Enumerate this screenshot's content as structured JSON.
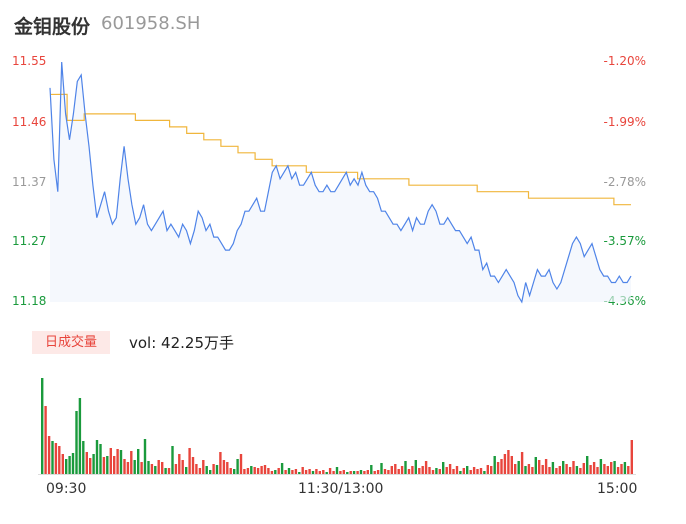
{
  "header": {
    "name": "金钼股份",
    "code": "601958.SH"
  },
  "colors": {
    "up": "#e8453c",
    "down": "#1a9a3c",
    "price_line": "#4f84e8",
    "avg_line": "#f0b63c"
  },
  "chart_data": {
    "type": "line",
    "price_axis": {
      "ticks": [
        "11.55",
        "11.46",
        "11.37",
        "11.27",
        "11.18"
      ],
      "ylim": [
        11.18,
        11.55
      ]
    },
    "pct_axis": {
      "ticks": [
        "-1.20%",
        "-1.99%",
        "-2.78%",
        "-3.57%",
        "-4.36%"
      ]
    },
    "x_ticks": [
      "09:30",
      "11:30/13:00",
      "15:00"
    ],
    "series": [
      {
        "name": "price",
        "y": [
          11.51,
          11.4,
          11.35,
          11.55,
          11.47,
          11.43,
          11.47,
          11.52,
          11.53,
          11.47,
          11.42,
          11.36,
          11.31,
          11.33,
          11.35,
          11.32,
          11.3,
          11.31,
          11.37,
          11.42,
          11.37,
          11.33,
          11.3,
          11.31,
          11.33,
          11.3,
          11.29,
          11.3,
          11.31,
          11.32,
          11.29,
          11.3,
          11.29,
          11.28,
          11.3,
          11.29,
          11.27,
          11.29,
          11.32,
          11.31,
          11.29,
          11.3,
          11.28,
          11.28,
          11.27,
          11.26,
          11.26,
          11.27,
          11.29,
          11.3,
          11.32,
          11.32,
          11.33,
          11.34,
          11.32,
          11.32,
          11.35,
          11.38,
          11.39,
          11.37,
          11.38,
          11.39,
          11.37,
          11.38,
          11.36,
          11.36,
          11.37,
          11.38,
          11.36,
          11.35,
          11.35,
          11.36,
          11.35,
          11.35,
          11.36,
          11.37,
          11.38,
          11.36,
          11.37,
          11.36,
          11.38,
          11.36,
          11.35,
          11.35,
          11.34,
          11.32,
          11.32,
          11.31,
          11.3,
          11.3,
          11.29,
          11.3,
          11.31,
          11.29,
          11.31,
          11.3,
          11.3,
          11.32,
          11.33,
          11.32,
          11.3,
          11.3,
          11.31,
          11.3,
          11.29,
          11.29,
          11.28,
          11.27,
          11.28,
          11.26,
          11.26,
          11.23,
          11.24,
          11.22,
          11.22,
          11.21,
          11.22,
          11.23,
          11.22,
          11.21,
          11.19,
          11.18,
          11.21,
          11.19,
          11.21,
          11.23,
          11.22,
          11.22,
          11.23,
          11.21,
          11.2,
          11.21,
          11.23,
          11.25,
          11.27,
          11.28,
          11.27,
          11.25,
          11.26,
          11.27,
          11.25,
          11.23,
          11.22,
          11.22,
          11.21,
          11.21,
          11.22,
          11.21,
          11.21,
          11.22
        ]
      },
      {
        "name": "average",
        "y": [
          11.5,
          11.46,
          11.47,
          11.47,
          11.47,
          11.46,
          11.46,
          11.45,
          11.44,
          11.43,
          11.42,
          11.41,
          11.4,
          11.39,
          11.39,
          11.38,
          11.38,
          11.38,
          11.37,
          11.37,
          11.37,
          11.36,
          11.36,
          11.36,
          11.36,
          11.35,
          11.35,
          11.35,
          11.34,
          11.34,
          11.34,
          11.34,
          11.34,
          11.33,
          11.33
        ]
      }
    ]
  },
  "volume": {
    "tag": "日成交量",
    "label": "vol: 42.25万手",
    "bars": [
      {
        "v": 96,
        "c": "down"
      },
      {
        "v": 68,
        "c": "up"
      },
      {
        "v": 38,
        "c": "up"
      },
      {
        "v": 33,
        "c": "down"
      },
      {
        "v": 31,
        "c": "up"
      },
      {
        "v": 28,
        "c": "up"
      },
      {
        "v": 20,
        "c": "up"
      },
      {
        "v": 15,
        "c": "down"
      },
      {
        "v": 18,
        "c": "down"
      },
      {
        "v": 21,
        "c": "down"
      },
      {
        "v": 63,
        "c": "down"
      },
      {
        "v": 76,
        "c": "down"
      },
      {
        "v": 33,
        "c": "down"
      },
      {
        "v": 22,
        "c": "up"
      },
      {
        "v": 16,
        "c": "up"
      },
      {
        "v": 20,
        "c": "down"
      },
      {
        "v": 34,
        "c": "down"
      },
      {
        "v": 30,
        "c": "down"
      },
      {
        "v": 17,
        "c": "up"
      },
      {
        "v": 18,
        "c": "down"
      },
      {
        "v": 26,
        "c": "up"
      },
      {
        "v": 18,
        "c": "up"
      },
      {
        "v": 25,
        "c": "up"
      },
      {
        "v": 24,
        "c": "down"
      },
      {
        "v": 15,
        "c": "up"
      },
      {
        "v": 12,
        "c": "up"
      },
      {
        "v": 23,
        "c": "up"
      },
      {
        "v": 14,
        "c": "down"
      },
      {
        "v": 25,
        "c": "down"
      },
      {
        "v": 12,
        "c": "up"
      },
      {
        "v": 35,
        "c": "down"
      },
      {
        "v": 13,
        "c": "down"
      },
      {
        "v": 10,
        "c": "up"
      },
      {
        "v": 8,
        "c": "down"
      },
      {
        "v": 14,
        "c": "up"
      },
      {
        "v": 12,
        "c": "up"
      },
      {
        "v": 6,
        "c": "down"
      },
      {
        "v": 6,
        "c": "up"
      },
      {
        "v": 28,
        "c": "down"
      },
      {
        "v": 10,
        "c": "up"
      },
      {
        "v": 20,
        "c": "up"
      },
      {
        "v": 14,
        "c": "up"
      },
      {
        "v": 7,
        "c": "down"
      },
      {
        "v": 26,
        "c": "up"
      },
      {
        "v": 17,
        "c": "up"
      },
      {
        "v": 10,
        "c": "up"
      },
      {
        "v": 6,
        "c": "up"
      },
      {
        "v": 14,
        "c": "up"
      },
      {
        "v": 8,
        "c": "down"
      },
      {
        "v": 4,
        "c": "down"
      },
      {
        "v": 10,
        "c": "up"
      },
      {
        "v": 9,
        "c": "down"
      },
      {
        "v": 22,
        "c": "up"
      },
      {
        "v": 14,
        "c": "up"
      },
      {
        "v": 12,
        "c": "up"
      },
      {
        "v": 6,
        "c": "up"
      },
      {
        "v": 5,
        "c": "down"
      },
      {
        "v": 15,
        "c": "down"
      },
      {
        "v": 20,
        "c": "up"
      },
      {
        "v": 5,
        "c": "up"
      },
      {
        "v": 6,
        "c": "up"
      },
      {
        "v": 8,
        "c": "down"
      },
      {
        "v": 7,
        "c": "up"
      },
      {
        "v": 6,
        "c": "up"
      },
      {
        "v": 8,
        "c": "up"
      },
      {
        "v": 9,
        "c": "up"
      },
      {
        "v": 6,
        "c": "up"
      },
      {
        "v": 3,
        "c": "up"
      },
      {
        "v": 4,
        "c": "down"
      },
      {
        "v": 6,
        "c": "up"
      },
      {
        "v": 11,
        "c": "down"
      },
      {
        "v": 4,
        "c": "up"
      },
      {
        "v": 6,
        "c": "down"
      },
      {
        "v": 4,
        "c": "up"
      },
      {
        "v": 5,
        "c": "up"
      },
      {
        "v": 2,
        "c": "down"
      },
      {
        "v": 7,
        "c": "up"
      },
      {
        "v": 4,
        "c": "up"
      },
      {
        "v": 5,
        "c": "up"
      },
      {
        "v": 3,
        "c": "down"
      },
      {
        "v": 5,
        "c": "up"
      },
      {
        "v": 3,
        "c": "up"
      },
      {
        "v": 4,
        "c": "up"
      },
      {
        "v": 2,
        "c": "down"
      },
      {
        "v": 6,
        "c": "up"
      },
      {
        "v": 3,
        "c": "up"
      },
      {
        "v": 7,
        "c": "down"
      },
      {
        "v": 3,
        "c": "up"
      },
      {
        "v": 4,
        "c": "up"
      },
      {
        "v": 2,
        "c": "down"
      },
      {
        "v": 3,
        "c": "up"
      },
      {
        "v": 3,
        "c": "down"
      },
      {
        "v": 3,
        "c": "up"
      },
      {
        "v": 4,
        "c": "down"
      },
      {
        "v": 3,
        "c": "up"
      },
      {
        "v": 4,
        "c": "up"
      },
      {
        "v": 9,
        "c": "down"
      },
      {
        "v": 3,
        "c": "up"
      },
      {
        "v": 4,
        "c": "up"
      },
      {
        "v": 11,
        "c": "down"
      },
      {
        "v": 5,
        "c": "up"
      },
      {
        "v": 4,
        "c": "up"
      },
      {
        "v": 8,
        "c": "up"
      },
      {
        "v": 10,
        "c": "up"
      },
      {
        "v": 5,
        "c": "up"
      },
      {
        "v": 8,
        "c": "up"
      },
      {
        "v": 13,
        "c": "down"
      },
      {
        "v": 5,
        "c": "up"
      },
      {
        "v": 8,
        "c": "up"
      },
      {
        "v": 14,
        "c": "down"
      },
      {
        "v": 6,
        "c": "up"
      },
      {
        "v": 8,
        "c": "up"
      },
      {
        "v": 13,
        "c": "up"
      },
      {
        "v": 7,
        "c": "up"
      },
      {
        "v": 4,
        "c": "up"
      },
      {
        "v": 6,
        "c": "down"
      },
      {
        "v": 5,
        "c": "up"
      },
      {
        "v": 12,
        "c": "down"
      },
      {
        "v": 7,
        "c": "up"
      },
      {
        "v": 10,
        "c": "up"
      },
      {
        "v": 5,
        "c": "up"
      },
      {
        "v": 8,
        "c": "up"
      },
      {
        "v": 3,
        "c": "down"
      },
      {
        "v": 6,
        "c": "up"
      },
      {
        "v": 8,
        "c": "down"
      },
      {
        "v": 4,
        "c": "up"
      },
      {
        "v": 7,
        "c": "up"
      },
      {
        "v": 5,
        "c": "up"
      },
      {
        "v": 6,
        "c": "up"
      },
      {
        "v": 3,
        "c": "down"
      },
      {
        "v": 9,
        "c": "up"
      },
      {
        "v": 8,
        "c": "up"
      },
      {
        "v": 18,
        "c": "down"
      },
      {
        "v": 12,
        "c": "up"
      },
      {
        "v": 15,
        "c": "up"
      },
      {
        "v": 20,
        "c": "up"
      },
      {
        "v": 24,
        "c": "up"
      },
      {
        "v": 18,
        "c": "up"
      },
      {
        "v": 10,
        "c": "up"
      },
      {
        "v": 13,
        "c": "down"
      },
      {
        "v": 22,
        "c": "up"
      },
      {
        "v": 8,
        "c": "down"
      },
      {
        "v": 10,
        "c": "up"
      },
      {
        "v": 7,
        "c": "up"
      },
      {
        "v": 17,
        "c": "down"
      },
      {
        "v": 14,
        "c": "up"
      },
      {
        "v": 9,
        "c": "up"
      },
      {
        "v": 15,
        "c": "up"
      },
      {
        "v": 7,
        "c": "up"
      },
      {
        "v": 12,
        "c": "down"
      },
      {
        "v": 6,
        "c": "up"
      },
      {
        "v": 8,
        "c": "up"
      },
      {
        "v": 13,
        "c": "down"
      },
      {
        "v": 10,
        "c": "up"
      },
      {
        "v": 7,
        "c": "up"
      },
      {
        "v": 13,
        "c": "up"
      },
      {
        "v": 8,
        "c": "down"
      },
      {
        "v": 6,
        "c": "up"
      },
      {
        "v": 11,
        "c": "up"
      },
      {
        "v": 18,
        "c": "down"
      },
      {
        "v": 9,
        "c": "up"
      },
      {
        "v": 12,
        "c": "up"
      },
      {
        "v": 7,
        "c": "up"
      },
      {
        "v": 15,
        "c": "down"
      },
      {
        "v": 10,
        "c": "up"
      },
      {
        "v": 8,
        "c": "up"
      },
      {
        "v": 12,
        "c": "up"
      },
      {
        "v": 13,
        "c": "down"
      },
      {
        "v": 7,
        "c": "up"
      },
      {
        "v": 10,
        "c": "up"
      },
      {
        "v": 12,
        "c": "down"
      },
      {
        "v": 8,
        "c": "up"
      },
      {
        "v": 34,
        "c": "up"
      }
    ]
  }
}
